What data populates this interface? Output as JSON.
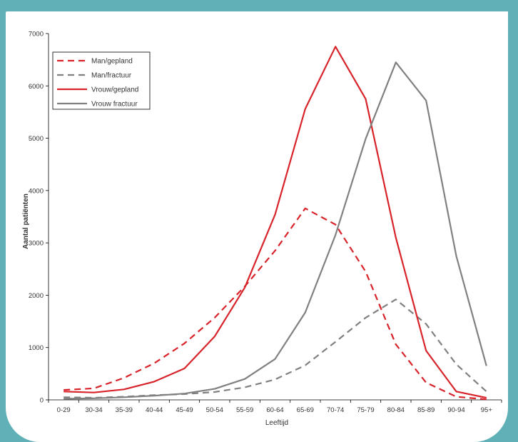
{
  "chart_data": {
    "type": "line",
    "title": "",
    "xlabel": "Leeftijd",
    "ylabel": "Aantal patiënten",
    "ylim": [
      0,
      7000
    ],
    "yticks": [
      0,
      1000,
      2000,
      3000,
      4000,
      5000,
      6000,
      7000
    ],
    "grid": false,
    "legend_position": "top-left",
    "categories": [
      "0-29",
      "30-34",
      "35-39",
      "40-44",
      "45-49",
      "50-54",
      "55-59",
      "60-64",
      "65-69",
      "70-74",
      "75-79",
      "80-84",
      "85-89",
      "90-94",
      "95+"
    ],
    "series": [
      {
        "name": "Man/gepland",
        "color": "#d8232a",
        "dash": true,
        "values": [
          190,
          220,
          420,
          700,
          1080,
          1570,
          2170,
          2850,
          3660,
          3350,
          2450,
          1060,
          330,
          60,
          10
        ]
      },
      {
        "name": "Man/fractuur",
        "color": "#808080",
        "dash": true,
        "values": [
          50,
          40,
          60,
          90,
          110,
          150,
          240,
          390,
          660,
          1110,
          1570,
          1920,
          1450,
          680,
          160
        ]
      },
      {
        "name": "Vrouw/gepland",
        "color": "#d8232a",
        "dash": false,
        "values": [
          160,
          140,
          200,
          350,
          600,
          1210,
          2150,
          3540,
          5560,
          6750,
          5750,
          3100,
          940,
          160,
          40
        ]
      },
      {
        "name": "Vrouw fractuur",
        "color": "#808080",
        "dash": false,
        "values": [
          20,
          30,
          50,
          80,
          120,
          210,
          400,
          780,
          1670,
          3150,
          4990,
          6450,
          5720,
          2750,
          650
        ]
      }
    ]
  }
}
